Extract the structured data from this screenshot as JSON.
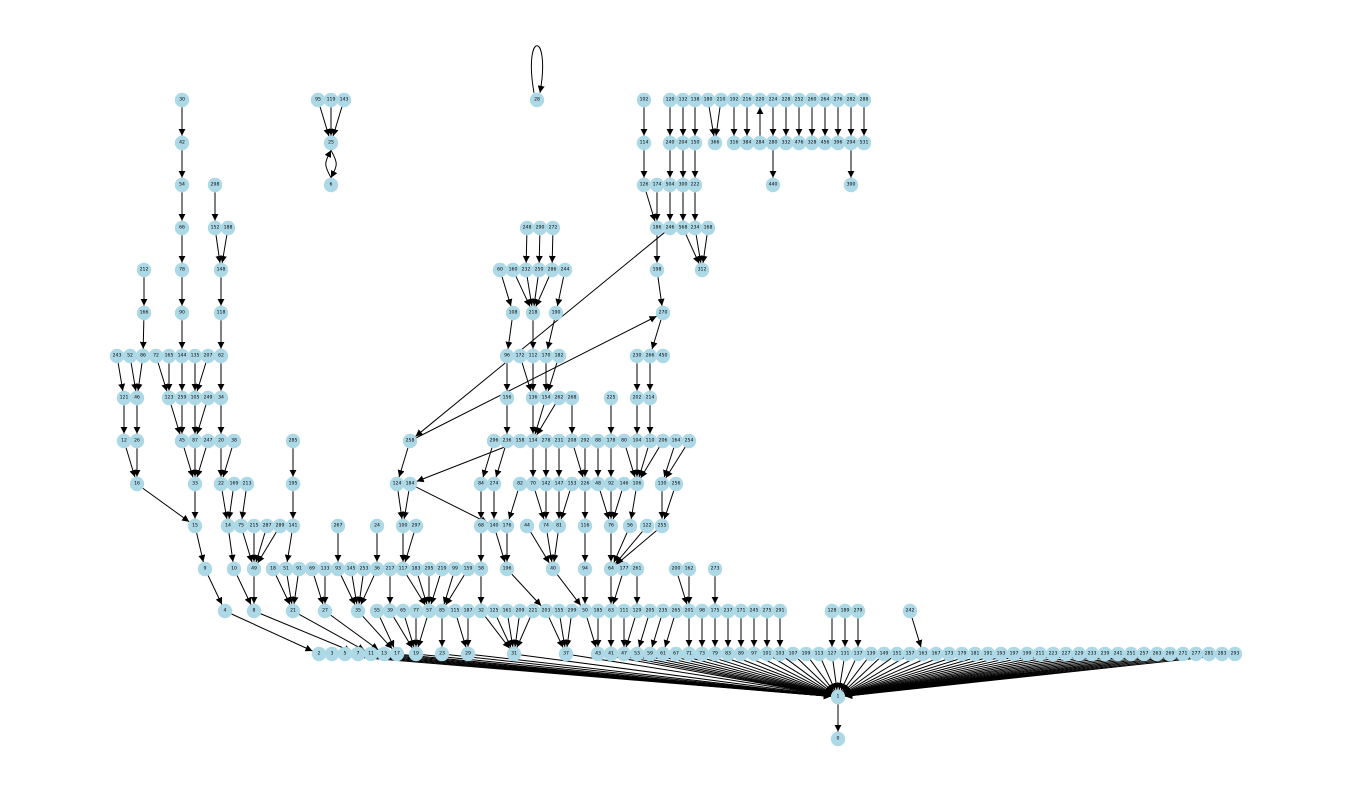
{
  "nodes": [
    "0",
    "1",
    "2",
    "3",
    "4",
    "5",
    "6",
    "7",
    "8",
    "9",
    "10",
    "11",
    "12",
    "13",
    "14",
    "15",
    "16",
    "17",
    "18",
    "19",
    "20",
    "21",
    "22",
    "23",
    "24",
    "25",
    "26",
    "27",
    "28",
    "29",
    "30",
    "31",
    "32",
    "33",
    "34",
    "35",
    "36",
    "37",
    "38",
    "39",
    "40",
    "41",
    "42",
    "43",
    "44",
    "45",
    "46",
    "47",
    "48",
    "49",
    "50",
    "51",
    "52",
    "53",
    "54",
    "55",
    "56",
    "57",
    "58",
    "59",
    "60",
    "61",
    "62",
    "63",
    "64",
    "65",
    "66",
    "67",
    "68",
    "69",
    "70",
    "71",
    "72",
    "73",
    "74",
    "75",
    "76",
    "77",
    "78",
    "79",
    "80",
    "81",
    "82",
    "83",
    "84",
    "85",
    "86",
    "87",
    "88",
    "89",
    "90",
    "91",
    "92",
    "93",
    "94",
    "95",
    "96",
    "97",
    "98",
    "99",
    "100",
    "101",
    "102",
    "103",
    "104",
    "105",
    "106",
    "107",
    "108",
    "109",
    "110",
    "111",
    "112",
    "113",
    "114",
    "115",
    "116",
    "117",
    "118",
    "119",
    "120",
    "121",
    "122",
    "123",
    "124",
    "125",
    "126",
    "127",
    "128",
    "129",
    "130",
    "131",
    "132",
    "133",
    "134",
    "135",
    "136",
    "137",
    "138",
    "139",
    "140",
    "141",
    "142",
    "143",
    "144",
    "145",
    "146",
    "147",
    "148",
    "149",
    "150",
    "151",
    "152",
    "153",
    "154",
    "155",
    "156",
    "157",
    "158",
    "159",
    "160",
    "161",
    "162",
    "163",
    "164",
    "165",
    "166",
    "167",
    "168",
    "169",
    "170",
    "171",
    "172",
    "173",
    "174",
    "175",
    "176",
    "177",
    "178",
    "179",
    "180",
    "181",
    "182",
    "183",
    "184",
    "185",
    "186",
    "187",
    "188",
    "189",
    "190",
    "191",
    "192",
    "193",
    "194",
    "195",
    "196",
    "197",
    "198",
    "199",
    "200",
    "201",
    "202",
    "203",
    "204",
    "205",
    "206",
    "207",
    "208",
    "209",
    "210",
    "211",
    "212",
    "213",
    "214",
    "215",
    "216",
    "217",
    "218",
    "219",
    "220",
    "221",
    "222",
    "223",
    "224",
    "225",
    "226",
    "227",
    "228",
    "229",
    "230",
    "231",
    "232",
    "233",
    "234",
    "235",
    "236",
    "237",
    "238",
    "239",
    "240",
    "241",
    "242",
    "243",
    "244",
    "245",
    "246",
    "247",
    "248",
    "249",
    "250",
    "251",
    "252",
    "253",
    "254",
    "255",
    "256",
    "257",
    "258",
    "259",
    "260",
    "261",
    "262",
    "263",
    "264",
    "265",
    "266",
    "267",
    "268",
    "269",
    "270",
    "271",
    "272",
    "273",
    "274",
    "275",
    "276",
    "277",
    "278",
    "279",
    "280",
    "281",
    "282",
    "283",
    "284",
    "285",
    "286",
    "287",
    "288",
    "289",
    "290",
    "291",
    "292",
    "293",
    "294",
    "295",
    "296",
    "297",
    "298",
    "299",
    "300",
    "312",
    "316",
    "328",
    "332",
    "366",
    "384",
    "390",
    "396",
    "440",
    "450",
    "456",
    "476",
    "504",
    "531",
    "568"
  ],
  "edges": [
    [
      "1",
      "0"
    ],
    [
      "2",
      "1"
    ],
    [
      "3",
      "1"
    ],
    [
      "5",
      "1"
    ],
    [
      "7",
      "1"
    ],
    [
      "11",
      "1"
    ],
    [
      "13",
      "1"
    ],
    [
      "17",
      "1"
    ],
    [
      "19",
      "1"
    ],
    [
      "23",
      "1"
    ],
    [
      "29",
      "1"
    ],
    [
      "31",
      "1"
    ],
    [
      "37",
      "1"
    ],
    [
      "41",
      "1"
    ],
    [
      "43",
      "1"
    ],
    [
      "47",
      "1"
    ],
    [
      "53",
      "1"
    ],
    [
      "59",
      "1"
    ],
    [
      "61",
      "1"
    ],
    [
      "67",
      "1"
    ],
    [
      "71",
      "1"
    ],
    [
      "73",
      "1"
    ],
    [
      "79",
      "1"
    ],
    [
      "83",
      "1"
    ],
    [
      "89",
      "1"
    ],
    [
      "97",
      "1"
    ],
    [
      "101",
      "1"
    ],
    [
      "103",
      "1"
    ],
    [
      "107",
      "1"
    ],
    [
      "109",
      "1"
    ],
    [
      "113",
      "1"
    ],
    [
      "127",
      "1"
    ],
    [
      "131",
      "1"
    ],
    [
      "137",
      "1"
    ],
    [
      "139",
      "1"
    ],
    [
      "149",
      "1"
    ],
    [
      "151",
      "1"
    ],
    [
      "157",
      "1"
    ],
    [
      "163",
      "1"
    ],
    [
      "167",
      "1"
    ],
    [
      "173",
      "1"
    ],
    [
      "179",
      "1"
    ],
    [
      "181",
      "1"
    ],
    [
      "191",
      "1"
    ],
    [
      "193",
      "1"
    ],
    [
      "197",
      "1"
    ],
    [
      "199",
      "1"
    ],
    [
      "211",
      "1"
    ],
    [
      "223",
      "1"
    ],
    [
      "227",
      "1"
    ],
    [
      "229",
      "1"
    ],
    [
      "233",
      "1"
    ],
    [
      "239",
      "1"
    ],
    [
      "241",
      "1"
    ],
    [
      "251",
      "1"
    ],
    [
      "257",
      "1"
    ],
    [
      "263",
      "1"
    ],
    [
      "269",
      "1"
    ],
    [
      "271",
      "1"
    ],
    [
      "277",
      "1"
    ],
    [
      "281",
      "1"
    ],
    [
      "283",
      "1"
    ],
    [
      "293",
      "1"
    ],
    [
      "4",
      "2"
    ],
    [
      "8",
      "7"
    ],
    [
      "21",
      "11"
    ],
    [
      "27",
      "13"
    ],
    [
      "35",
      "17"
    ],
    [
      "55",
      "17"
    ],
    [
      "39",
      "19"
    ],
    [
      "65",
      "19"
    ],
    [
      "77",
      "19"
    ],
    [
      "57",
      "19"
    ],
    [
      "85",
      "23"
    ],
    [
      "115",
      "29"
    ],
    [
      "187",
      "29"
    ],
    [
      "32",
      "31"
    ],
    [
      "125",
      "31"
    ],
    [
      "161",
      "31"
    ],
    [
      "209",
      "31"
    ],
    [
      "221",
      "31"
    ],
    [
      "203",
      "37"
    ],
    [
      "155",
      "37"
    ],
    [
      "299",
      "37"
    ],
    [
      "50",
      "43"
    ],
    [
      "185",
      "43"
    ],
    [
      "63",
      "41"
    ],
    [
      "111",
      "47"
    ],
    [
      "129",
      "47"
    ],
    [
      "205",
      "53"
    ],
    [
      "235",
      "59"
    ],
    [
      "265",
      "61"
    ],
    [
      "201",
      "71"
    ],
    [
      "98",
      "73"
    ],
    [
      "175",
      "79"
    ],
    [
      "237",
      "83"
    ],
    [
      "171",
      "89"
    ],
    [
      "245",
      "97"
    ],
    [
      "275",
      "101"
    ],
    [
      "291",
      "103"
    ],
    [
      "128",
      "127"
    ],
    [
      "189",
      "131"
    ],
    [
      "279",
      "137"
    ],
    [
      "242",
      "163"
    ],
    [
      "9",
      "4"
    ],
    [
      "10",
      "8"
    ],
    [
      "49",
      "8"
    ],
    [
      "18",
      "21"
    ],
    [
      "51",
      "21"
    ],
    [
      "91",
      "21"
    ],
    [
      "69",
      "27"
    ],
    [
      "133",
      "27"
    ],
    [
      "93",
      "35"
    ],
    [
      "145",
      "35"
    ],
    [
      "253",
      "35"
    ],
    [
      "36",
      "35"
    ],
    [
      "217",
      "39"
    ],
    [
      "117",
      "57"
    ],
    [
      "183",
      "57"
    ],
    [
      "295",
      "57"
    ],
    [
      "219",
      "57"
    ],
    [
      "99",
      "85"
    ],
    [
      "159",
      "85"
    ],
    [
      "58",
      "32"
    ],
    [
      "196",
      "203"
    ],
    [
      "40",
      "50"
    ],
    [
      "94",
      "50"
    ],
    [
      "64",
      "63"
    ],
    [
      "177",
      "63"
    ],
    [
      "261",
      "129"
    ],
    [
      "200",
      "201"
    ],
    [
      "162",
      "201"
    ],
    [
      "273",
      "175"
    ],
    [
      "15",
      "9"
    ],
    [
      "14",
      "10"
    ],
    [
      "75",
      "49"
    ],
    [
      "215",
      "49"
    ],
    [
      "287",
      "49"
    ],
    [
      "289",
      "49"
    ],
    [
      "141",
      "51"
    ],
    [
      "267",
      "93"
    ],
    [
      "24",
      "36"
    ],
    [
      "100",
      "117"
    ],
    [
      "297",
      "117"
    ],
    [
      "68",
      "58"
    ],
    [
      "140",
      "196"
    ],
    [
      "176",
      "196"
    ],
    [
      "44",
      "40"
    ],
    [
      "74",
      "40"
    ],
    [
      "81",
      "40"
    ],
    [
      "116",
      "94"
    ],
    [
      "76",
      "64"
    ],
    [
      "56",
      "64"
    ],
    [
      "122",
      "64"
    ],
    [
      "255",
      "64"
    ],
    [
      "16",
      "15"
    ],
    [
      "33",
      "15"
    ],
    [
      "22",
      "14"
    ],
    [
      "169",
      "14"
    ],
    [
      "213",
      "75"
    ],
    [
      "195",
      "141"
    ],
    [
      "124",
      "100"
    ],
    [
      "184",
      "100"
    ],
    [
      "84",
      "68"
    ],
    [
      "274",
      "140"
    ],
    [
      "184",
      "140"
    ],
    [
      "82",
      "176"
    ],
    [
      "70",
      "74"
    ],
    [
      "142",
      "74"
    ],
    [
      "147",
      "81"
    ],
    [
      "153",
      "81"
    ],
    [
      "226",
      "116"
    ],
    [
      "48",
      "76"
    ],
    [
      "92",
      "76"
    ],
    [
      "146",
      "76"
    ],
    [
      "106",
      "56"
    ],
    [
      "130",
      "255"
    ],
    [
      "256",
      "255"
    ],
    [
      "12",
      "16"
    ],
    [
      "26",
      "16"
    ],
    [
      "45",
      "33"
    ],
    [
      "87",
      "33"
    ],
    [
      "247",
      "33"
    ],
    [
      "20",
      "22"
    ],
    [
      "38",
      "22"
    ],
    [
      "285",
      "195"
    ],
    [
      "258",
      "124"
    ],
    [
      "296",
      "84"
    ],
    [
      "236",
      "274"
    ],
    [
      "158",
      "184"
    ],
    [
      "134",
      "70"
    ],
    [
      "278",
      "142"
    ],
    [
      "231",
      "147"
    ],
    [
      "208",
      "226"
    ],
    [
      "292",
      "226"
    ],
    [
      "88",
      "48"
    ],
    [
      "178",
      "92"
    ],
    [
      "80",
      "106"
    ],
    [
      "104",
      "106"
    ],
    [
      "110",
      "106"
    ],
    [
      "206",
      "106"
    ],
    [
      "164",
      "130"
    ],
    [
      "254",
      "130"
    ],
    [
      "121",
      "12"
    ],
    [
      "46",
      "26"
    ],
    [
      "123",
      "45"
    ],
    [
      "259",
      "45"
    ],
    [
      "105",
      "87"
    ],
    [
      "249",
      "87"
    ],
    [
      "34",
      "20"
    ],
    [
      "156",
      "236"
    ],
    [
      "136",
      "134"
    ],
    [
      "154",
      "134"
    ],
    [
      "262",
      "134"
    ],
    [
      "268",
      "208"
    ],
    [
      "225",
      "178"
    ],
    [
      "202",
      "104"
    ],
    [
      "214",
      "110"
    ],
    [
      "243",
      "121"
    ],
    [
      "52",
      "46"
    ],
    [
      "86",
      "46"
    ],
    [
      "72",
      "123"
    ],
    [
      "165",
      "123"
    ],
    [
      "144",
      "259"
    ],
    [
      "135",
      "105"
    ],
    [
      "207",
      "105"
    ],
    [
      "62",
      "34"
    ],
    [
      "96",
      "156"
    ],
    [
      "172",
      "136"
    ],
    [
      "112",
      "136"
    ],
    [
      "170",
      "154"
    ],
    [
      "182",
      "154"
    ],
    [
      "230",
      "202"
    ],
    [
      "266",
      "214"
    ],
    [
      "166",
      "86"
    ],
    [
      "90",
      "144"
    ],
    [
      "118",
      "62"
    ],
    [
      "108",
      "96"
    ],
    [
      "218",
      "112"
    ],
    [
      "190",
      "170"
    ],
    [
      "450",
      "266"
    ],
    [
      "212",
      "166"
    ],
    [
      "78",
      "90"
    ],
    [
      "148",
      "118"
    ],
    [
      "60",
      "108"
    ],
    [
      "160",
      "218"
    ],
    [
      "232",
      "218"
    ],
    [
      "250",
      "218"
    ],
    [
      "286",
      "218"
    ],
    [
      "244",
      "190"
    ],
    [
      "270",
      "266"
    ],
    [
      "66",
      "78"
    ],
    [
      "152",
      "148"
    ],
    [
      "188",
      "148"
    ],
    [
      "248",
      "232"
    ],
    [
      "290",
      "250"
    ],
    [
      "272",
      "286"
    ],
    [
      "198",
      "270"
    ],
    [
      "258",
      "270"
    ],
    [
      "54",
      "66"
    ],
    [
      "298",
      "152"
    ],
    [
      "186",
      "198"
    ],
    [
      "246",
      "258"
    ],
    [
      "568",
      "312"
    ],
    [
      "234",
      "312"
    ],
    [
      "168",
      "312"
    ],
    [
      "42",
      "54"
    ],
    [
      "126",
      "186"
    ],
    [
      "174",
      "186"
    ],
    [
      "504",
      "246"
    ],
    [
      "300",
      "568"
    ],
    [
      "222",
      "234"
    ],
    [
      "30",
      "42"
    ],
    [
      "114",
      "126"
    ],
    [
      "240",
      "504"
    ],
    [
      "204",
      "300"
    ],
    [
      "150",
      "222"
    ],
    [
      "102",
      "114"
    ],
    [
      "120",
      "240"
    ],
    [
      "132",
      "204"
    ],
    [
      "138",
      "150"
    ],
    [
      "180",
      "366"
    ],
    [
      "210",
      "366"
    ],
    [
      "192",
      "316"
    ],
    [
      "216",
      "384"
    ],
    [
      "284",
      "220"
    ],
    [
      "224",
      "280"
    ],
    [
      "228",
      "332"
    ],
    [
      "252",
      "476"
    ],
    [
      "260",
      "328"
    ],
    [
      "264",
      "456"
    ],
    [
      "276",
      "396"
    ],
    [
      "282",
      "294"
    ],
    [
      "288",
      "531"
    ],
    [
      "280",
      "440"
    ],
    [
      "294",
      "390"
    ],
    [
      "95",
      "25"
    ],
    [
      "119",
      "25"
    ],
    [
      "143",
      "25"
    ],
    [
      "25",
      "6"
    ],
    [
      "6",
      "25"
    ],
    [
      "28",
      "28"
    ]
  ]
}
